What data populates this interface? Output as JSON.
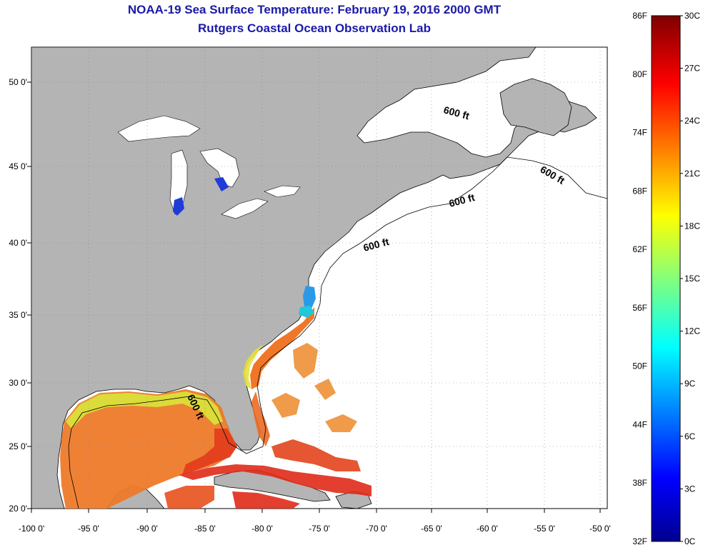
{
  "title": "NOAA-19 Sea Surface Temperature:  February 19, 2016 2000 GMT",
  "subtitle": "Rutgers Coastal Ocean Observation Lab",
  "colors": {
    "land": "#b4b4b4",
    "title": "#1a1aa8",
    "grid": "#808080"
  },
  "map": {
    "lat_labels": [
      "50 0'",
      "45 0'",
      "40 0'",
      "35 0'",
      "30 0'",
      "25 0'",
      "20 0'"
    ],
    "lon_labels": [
      "-100 0'",
      "-95 0'",
      "-90 0'",
      "-85 0'",
      "-80 0'",
      "-75 0'",
      "-70 0'",
      "-65 0'",
      "-60 0'",
      "-55 0'",
      "-50 0'"
    ],
    "contour_label": "600 ft"
  },
  "colorbar": {
    "f_labels": [
      "86F",
      "80F",
      "74F",
      "68F",
      "62F",
      "56F",
      "50F",
      "44F",
      "38F",
      "32F"
    ],
    "c_labels": [
      "30C",
      "27C",
      "24C",
      "21C",
      "18C",
      "15C",
      "12C",
      "9C",
      "6C",
      "3C",
      "0C"
    ],
    "range_c": [
      0,
      30
    ]
  }
}
